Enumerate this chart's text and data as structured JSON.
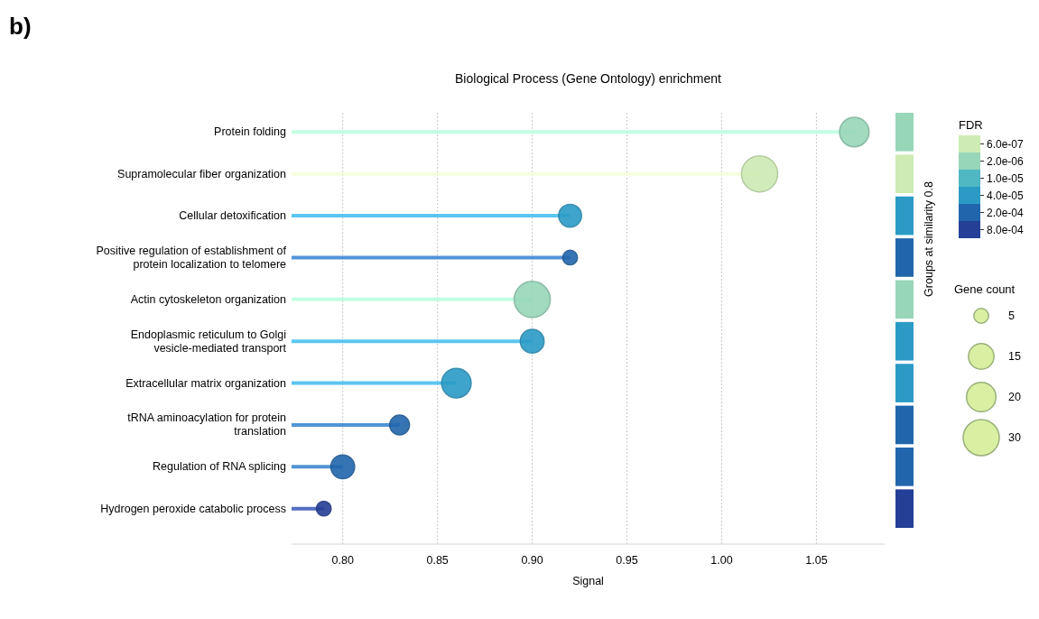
{
  "chart_data": {
    "type": "lollipop",
    "orientation": "horizontal",
    "title": "Biological Process (Gene Ontology) enrichment",
    "xlabel": "Signal",
    "y2label": "Groups at similarity 0.8",
    "legend_title": "FDR",
    "annotations": [
      "b)",
      "Gene count"
    ],
    "categories": [
      "Protein folding",
      "Supramolecular fiber organization",
      "Cellular detoxification",
      "Positive regulation of establishment of protein localization to telomere",
      "Actin cytoskeleton organization",
      "Endoplasmic reticulum to Golgi vesicle-mediated transport",
      "Extracellular matrix organization",
      "tRNA aminoacylation for protein translation",
      "Regulation of RNA splicing",
      "Hydrogen peroxide catabolic process"
    ],
    "series": [
      {
        "name": "6.0e-07",
        "color": "#cdebb3",
        "values": [
          null,
          1.02,
          null,
          null,
          null,
          null,
          null,
          null,
          null,
          null
        ],
        "sizes": [
          null,
          30,
          null,
          null,
          null,
          null,
          null,
          null,
          null,
          null
        ]
      },
      {
        "name": "2.0e-06",
        "color": "#97d6b9",
        "values": [
          1.07,
          null,
          null,
          null,
          0.9,
          null,
          null,
          null,
          null,
          null
        ],
        "sizes": [
          20,
          null,
          null,
          null,
          30,
          null,
          null,
          null,
          null,
          null
        ]
      },
      {
        "name": "1.0e-05",
        "color": "#4fb8c3",
        "values": [
          null,
          null,
          null,
          null,
          null,
          null,
          null,
          null,
          null,
          null
        ],
        "sizes": [
          null,
          null,
          null,
          null,
          null,
          null,
          null,
          null,
          null,
          null
        ]
      },
      {
        "name": "4.0e-05",
        "color": "#2b9bc6",
        "values": [
          null,
          null,
          0.92,
          null,
          null,
          0.9,
          0.86,
          null,
          null,
          null
        ],
        "sizes": [
          null,
          null,
          12,
          null,
          null,
          13,
          20,
          null,
          null,
          null
        ]
      },
      {
        "name": "2.0e-04",
        "color": "#2166ac",
        "values": [
          null,
          null,
          null,
          0.92,
          null,
          null,
          null,
          0.83,
          0.8,
          null
        ],
        "sizes": [
          null,
          null,
          null,
          5,
          null,
          null,
          null,
          9,
          13,
          null
        ]
      },
      {
        "name": "8.0e-04",
        "color": "#253f96",
        "values": [
          null,
          null,
          null,
          null,
          null,
          null,
          null,
          null,
          null,
          0.79
        ],
        "sizes": [
          null,
          null,
          null,
          null,
          null,
          null,
          null,
          null,
          null,
          5
        ]
      }
    ],
    "size_legend": [
      5,
      15,
      20,
      30
    ],
    "xlim": [
      0.773,
      1.086
    ],
    "xticks": [
      {
        "value": 0.8,
        "label": "0.80"
      },
      {
        "value": 0.85,
        "label": "0.85"
      },
      {
        "value": 0.9,
        "label": "0.90"
      },
      {
        "value": 0.95,
        "label": "0.95"
      },
      {
        "value": 1.0,
        "label": "1.00"
      },
      {
        "value": 1.05,
        "label": "1.05"
      }
    ],
    "grid": "x",
    "legend": "right"
  }
}
